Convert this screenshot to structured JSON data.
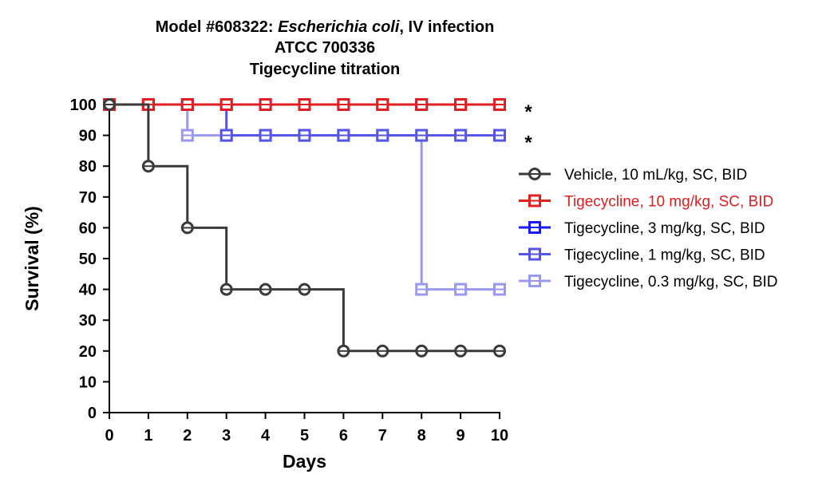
{
  "title": {
    "line1_prefix": "Model #608322: ",
    "line1_italic": "Escherichia coli",
    "line1_suffix": ", IV infection",
    "line2": "ATCC 700336",
    "line3": "Tigecycline titration"
  },
  "chart_data": {
    "type": "line",
    "step": true,
    "xlabel": "Days",
    "ylabel": "Survival (%)",
    "xlim": [
      0,
      10
    ],
    "ylim": [
      0,
      100
    ],
    "xticks": [
      0,
      1,
      2,
      3,
      4,
      5,
      6,
      7,
      8,
      9,
      10
    ],
    "yticks": [
      0,
      10,
      20,
      30,
      40,
      50,
      60,
      70,
      80,
      90,
      100
    ],
    "grid": false,
    "legend_position": "right",
    "series": [
      {
        "name": "Vehicle, 10 mL/kg, SC, BID",
        "color": "#3a3a3a",
        "marker": "circle",
        "x": [
          0,
          1,
          1,
          2,
          2,
          3,
          3,
          4,
          5,
          6,
          6,
          7,
          8,
          9,
          10
        ],
        "y": [
          100,
          100,
          80,
          80,
          60,
          60,
          40,
          40,
          40,
          40,
          20,
          20,
          20,
          20,
          20
        ]
      },
      {
        "name": "Tigecycline, 10 mg/kg, SC, BID",
        "color": "#e02020",
        "marker": "square",
        "x": [
          0,
          1,
          2,
          3,
          4,
          5,
          6,
          7,
          8,
          9,
          10
        ],
        "y": [
          100,
          100,
          100,
          100,
          100,
          100,
          100,
          100,
          100,
          100,
          100
        ]
      },
      {
        "name": "Tigecycline, 3 mg/kg, SC, BID",
        "color": "#1a1aff",
        "marker": "square",
        "x": [
          0,
          1,
          2,
          3,
          4,
          5,
          6,
          7,
          8,
          9,
          10
        ],
        "y": [
          100,
          100,
          100,
          100,
          100,
          100,
          100,
          100,
          100,
          100,
          100
        ]
      },
      {
        "name": "Tigecycline, 1 mg/kg, SC, BID",
        "color": "#5555e6",
        "marker": "square",
        "x": [
          0,
          1,
          2,
          3,
          3,
          4,
          5,
          6,
          7,
          8,
          9,
          10
        ],
        "y": [
          100,
          100,
          100,
          100,
          90,
          90,
          90,
          90,
          90,
          90,
          90,
          90
        ]
      },
      {
        "name": "Tigecycline, 0.3 mg/kg, SC, BID",
        "color": "#9999f2",
        "marker": "square",
        "x": [
          0,
          1,
          2,
          2,
          3,
          4,
          5,
          6,
          7,
          8,
          8,
          9,
          10
        ],
        "y": [
          100,
          100,
          100,
          90,
          90,
          90,
          90,
          90,
          90,
          90,
          40,
          40,
          40
        ]
      }
    ],
    "annotations": [
      {
        "text": "*",
        "y": 100
      },
      {
        "text": "*",
        "y": 90
      }
    ]
  }
}
